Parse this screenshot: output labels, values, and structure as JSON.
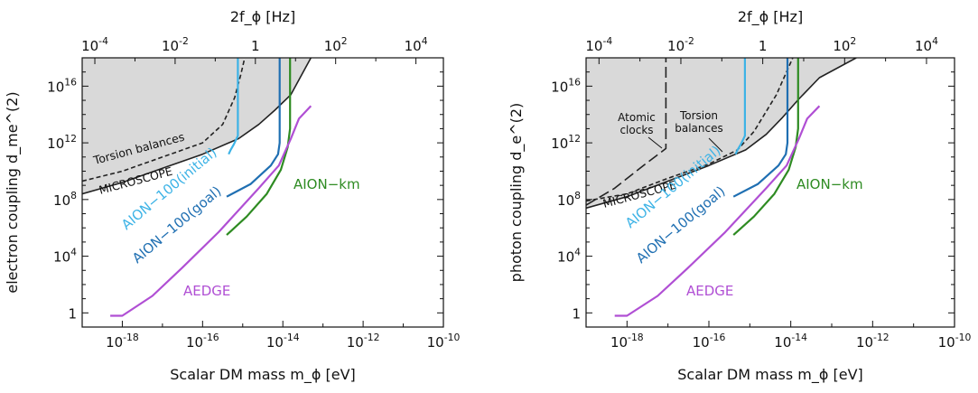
{
  "chart_data": [
    {
      "type": "line",
      "x_axis_scale": "log",
      "y_axis_scale": "log",
      "xlabel": "Scalar DM mass m_ϕ [eV]",
      "ylabel": "electron coupling d_me^(2)",
      "top_axis_label": "2f_ϕ [Hz]",
      "xlim_log10": [
        -19,
        -10
      ],
      "ylim_log10": [
        -1,
        18
      ],
      "top_ticks": [
        {
          "log10": -4,
          "label": "10^-4"
        },
        {
          "log10": -2,
          "label": "10^-2"
        },
        {
          "log10": 0,
          "label": "1"
        },
        {
          "log10": 2,
          "label": "10^2"
        },
        {
          "log10": 4,
          "label": "10^4"
        }
      ],
      "y_ticks": [
        {
          "log10": 16,
          "label": "10^16"
        },
        {
          "log10": 12,
          "label": "10^12"
        },
        {
          "log10": 8,
          "label": "10^8"
        },
        {
          "log10": 4,
          "label": "10^4"
        },
        {
          "log10": 0,
          "label": "1"
        }
      ],
      "x_ticks": [
        {
          "log10": -18,
          "label": "10^-18"
        },
        {
          "log10": -16,
          "label": "10^-16"
        },
        {
          "log10": -14,
          "label": "10^-14"
        },
        {
          "log10": -12,
          "label": "10^-12"
        },
        {
          "log10": -10,
          "label": "10^-10"
        }
      ],
      "excluded_region": {
        "name": "excluded (grey)",
        "color": "#d9d9d9"
      },
      "series": [
        {
          "name": "MICROSCOPE",
          "color": "#222222",
          "dash": "solid",
          "x_log10": [
            -19,
            -18,
            -17,
            -16,
            -15.1,
            -14.6,
            -14.2,
            -13.8,
            -13.3
          ],
          "y_log10": [
            8.4,
            9.2,
            10.2,
            11.2,
            12.3,
            13.3,
            14.3,
            15.4,
            18
          ]
        },
        {
          "name": "Torsion balances",
          "color": "#222222",
          "dash": "dashed",
          "x_log10": [
            -19,
            -18,
            -17,
            -16,
            -15.5,
            -15.2,
            -15.05,
            -14.95
          ],
          "y_log10": [
            9.3,
            10,
            11,
            12,
            13.3,
            15.2,
            16.8,
            18
          ]
        },
        {
          "name": "AION−100(initial)",
          "color": "#3db3e6",
          "dash": "solid",
          "x_log10": [
            -15.35,
            -15.3,
            -15.22,
            -15.12,
            -15.12
          ],
          "y_log10": [
            11.2,
            11.5,
            11.9,
            12.5,
            18
          ]
        },
        {
          "name": "AION−100(goal)",
          "color": "#1f6fb2",
          "dash": "solid",
          "x_log10": [
            -15.4,
            -14.8,
            -14.3,
            -14.12,
            -14.08,
            -14.08
          ],
          "y_log10": [
            8.2,
            9.1,
            10.4,
            11.2,
            12,
            18
          ]
        },
        {
          "name": "AION−km",
          "color": "#2e8b22",
          "dash": "solid",
          "x_log10": [
            -15.4,
            -14.9,
            -14.4,
            -14.05,
            -13.88,
            -13.82,
            -13.82
          ],
          "y_log10": [
            5.5,
            6.8,
            8.4,
            10.1,
            11.7,
            13,
            18
          ]
        },
        {
          "name": "AEDGE",
          "color": "#b04fd4",
          "dash": "solid",
          "x_log10": [
            -18.3,
            -18,
            -17.25,
            -16.5,
            -15.6,
            -14.6,
            -14.1,
            -13.8,
            -13.6,
            -13.3
          ],
          "y_log10": [
            -0.2,
            -0.2,
            1.2,
            3.2,
            5.7,
            8.8,
            10.4,
            12.3,
            13.7,
            14.6
          ]
        }
      ]
    },
    {
      "type": "line",
      "x_axis_scale": "log",
      "y_axis_scale": "log",
      "xlabel": "Scalar DM mass m_ϕ [eV]",
      "ylabel": "photon coupling d_e^(2)",
      "top_axis_label": "2f_ϕ [Hz]",
      "xlim_log10": [
        -19,
        -10
      ],
      "ylim_log10": [
        -1,
        18
      ],
      "top_ticks": [
        {
          "log10": -4,
          "label": "10^-4"
        },
        {
          "log10": -2,
          "label": "10^-2"
        },
        {
          "log10": 0,
          "label": "1"
        },
        {
          "log10": 2,
          "label": "10^2"
        },
        {
          "log10": 4,
          "label": "10^4"
        }
      ],
      "y_ticks": [
        {
          "log10": 16,
          "label": "10^16"
        },
        {
          "log10": 12,
          "label": "10^12"
        },
        {
          "log10": 8,
          "label": "10^8"
        },
        {
          "log10": 4,
          "label": "10^4"
        },
        {
          "log10": 0,
          "label": "1"
        }
      ],
      "x_ticks": [
        {
          "log10": -18,
          "label": "10^-18"
        },
        {
          "log10": -16,
          "label": "10^-16"
        },
        {
          "log10": -14,
          "label": "10^-14"
        },
        {
          "log10": -12,
          "label": "10^-12"
        },
        {
          "log10": -10,
          "label": "10^-10"
        }
      ],
      "excluded_region": {
        "name": "excluded (grey)",
        "color": "#d9d9d9"
      },
      "series": [
        {
          "name": "MICROSCOPE",
          "color": "#222222",
          "dash": "solid",
          "x_log10": [
            -19,
            -18,
            -17,
            -16,
            -15.1,
            -14.6,
            -14.2,
            -13.8,
            -13.3,
            -12.4
          ],
          "y_log10": [
            7.4,
            8.2,
            9.3,
            10.4,
            11.5,
            12.6,
            13.8,
            15.1,
            16.6,
            18
          ]
        },
        {
          "name": "Torsion balances",
          "color": "#222222",
          "dash": "dashed",
          "x_log10": [
            -19,
            -18,
            -17,
            -16,
            -15.3,
            -14.9,
            -14.35,
            -13.95
          ],
          "y_log10": [
            7.9,
            8.4,
            9.5,
            10.5,
            11.5,
            12.8,
            15.4,
            18
          ]
        },
        {
          "name": "Atomic clocks",
          "color": "#222222",
          "dash": "longdash",
          "x_log10": [
            -19,
            -18.3,
            -17.6,
            -17.05,
            -17.05
          ],
          "y_log10": [
            7.6,
            8.8,
            10.4,
            11.6,
            18
          ]
        },
        {
          "name": "AION−100(initial)",
          "color": "#3db3e6",
          "dash": "solid",
          "x_log10": [
            -15.35,
            -15.3,
            -15.22,
            -15.12,
            -15.12
          ],
          "y_log10": [
            11.2,
            11.5,
            11.9,
            12.5,
            18
          ]
        },
        {
          "name": "AION−100(goal)",
          "color": "#1f6fb2",
          "dash": "solid",
          "x_log10": [
            -15.4,
            -14.8,
            -14.3,
            -14.12,
            -14.08,
            -14.08
          ],
          "y_log10": [
            8.2,
            9.1,
            10.4,
            11.2,
            12,
            18
          ]
        },
        {
          "name": "AION−km",
          "color": "#2e8b22",
          "dash": "solid",
          "x_log10": [
            -15.4,
            -14.9,
            -14.4,
            -14.05,
            -13.88,
            -13.82,
            -13.82
          ],
          "y_log10": [
            5.5,
            6.8,
            8.4,
            10.1,
            11.7,
            13,
            18
          ]
        },
        {
          "name": "AEDGE",
          "color": "#b04fd4",
          "dash": "solid",
          "x_log10": [
            -18.3,
            -18,
            -17.25,
            -16.5,
            -15.6,
            -14.6,
            -14.1,
            -13.8,
            -13.6,
            -13.3
          ],
          "y_log10": [
            -0.2,
            -0.2,
            1.2,
            3.2,
            5.7,
            8.8,
            10.4,
            12.3,
            13.7,
            14.6
          ]
        }
      ]
    }
  ]
}
